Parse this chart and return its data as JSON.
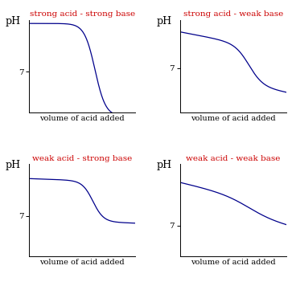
{
  "titles": [
    "strong acid - strong base",
    "strong acid - weak base",
    "weak acid - strong base",
    "weak acid - weak base"
  ],
  "title_color": "#cc0000",
  "curve_color": "#00008B",
  "axis_label_pH": "pH",
  "axis_label_x": "volume of acid added",
  "background_color": "#ffffff",
  "title_fontsize": 7.5,
  "axis_label_fontsize": 7,
  "tick_label_fontsize": 7.5,
  "figsize": [
    3.63,
    3.51
  ],
  "dpi": 100
}
